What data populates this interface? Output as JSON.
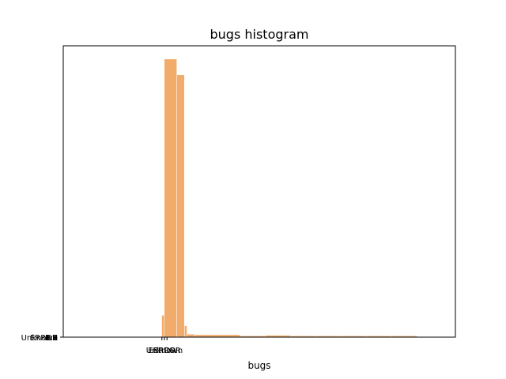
{
  "chart_data": {
    "type": "bar",
    "title": "bugs histogram",
    "xlabel": "bugs",
    "ylabel": "",
    "bar_color": "#f1ab6b",
    "grid": false,
    "legend": "none",
    "ylim": [
      0,
      1000
    ],
    "bins": [
      {
        "x0": -0.1,
        "x1": 0.0,
        "count": 78
      },
      {
        "x0": 0.0,
        "x1": 0.5,
        "count": 1000
      },
      {
        "x0": 0.5,
        "x1": 0.8,
        "count": 943
      },
      {
        "x0": 0.8,
        "x1": 0.9,
        "count": 40
      },
      {
        "x0": 0.9,
        "x1": 1.2,
        "count": 10
      },
      {
        "x0": 1.2,
        "x1": 3.0,
        "count": 8
      },
      {
        "x0": 3.0,
        "x1": 4.0,
        "count": 4
      },
      {
        "x0": 4.0,
        "x1": 5.0,
        "count": 6
      },
      {
        "x0": 5.0,
        "x1": 6.0,
        "count": 4
      },
      {
        "x0": 6.0,
        "x1": 7.0,
        "count": 4
      },
      {
        "x0": 7.0,
        "x1": 8.0,
        "count": 4
      },
      {
        "x0": 8.0,
        "x1": 9.0,
        "count": 4
      },
      {
        "x0": 9.0,
        "x1": 10.0,
        "count": 4
      }
    ],
    "xlim": [
      -4,
      11.5
    ],
    "x_ticks": [
      {
        "value": -0.1,
        "label": "ERROR"
      },
      {
        "value": 0.0,
        "label": "Unknown"
      },
      {
        "value": 0.1,
        "label": "ERROR"
      }
    ],
    "y_tick_labels": [
      "ERROR",
      "Unknown",
      "1.0",
      "2.3",
      "0.7",
      "1.5",
      "0.9",
      "1.7",
      "3.2"
    ]
  }
}
